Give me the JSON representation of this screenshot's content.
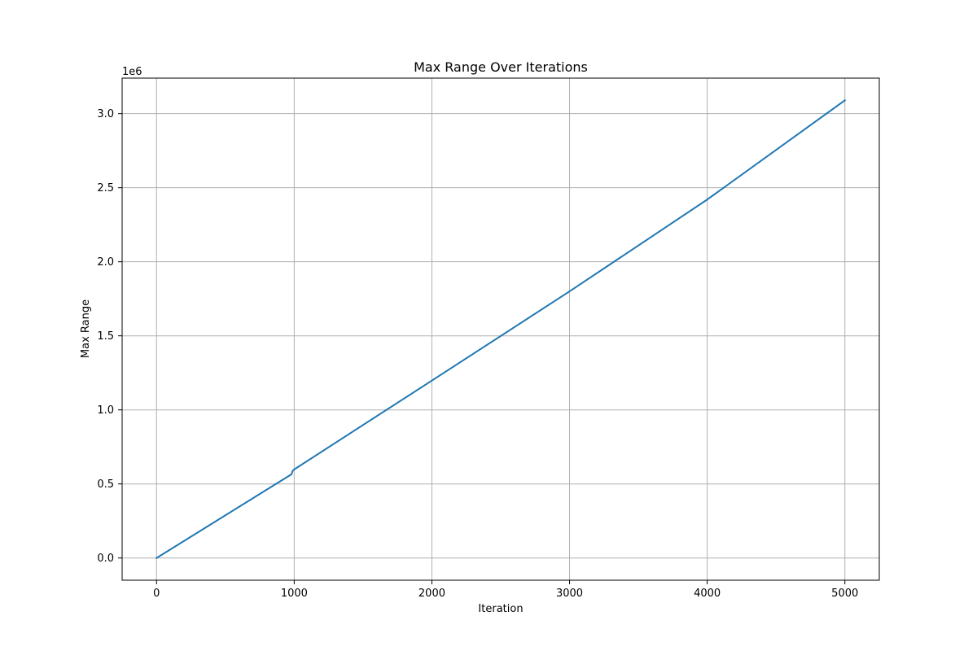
{
  "chart_data": {
    "type": "line",
    "title": "Max Range Over Iterations",
    "xlabel": "Iteration",
    "ylabel": "Max Range",
    "y_offset_label": "1e6",
    "xlim": [
      -250,
      5250
    ],
    "ylim": [
      -150000,
      3240000
    ],
    "x_ticks": [
      0,
      1000,
      2000,
      3000,
      4000,
      5000
    ],
    "x_tick_labels": [
      "0",
      "1000",
      "2000",
      "3000",
      "4000",
      "5000"
    ],
    "y_ticks": [
      0,
      500000,
      1000000,
      1500000,
      2000000,
      2500000,
      3000000
    ],
    "y_tick_labels": [
      "0.0",
      "0.5",
      "1.0",
      "1.5",
      "2.0",
      "2.5",
      "3.0"
    ],
    "grid": true,
    "line_color": "#1f77b4",
    "series": [
      {
        "x": [
          0,
          980,
          990,
          1000,
          2000,
          3000,
          4000,
          5000
        ],
        "y": [
          0,
          565000,
          590000,
          598000,
          1198000,
          1800000,
          2420000,
          3090000
        ]
      }
    ]
  }
}
